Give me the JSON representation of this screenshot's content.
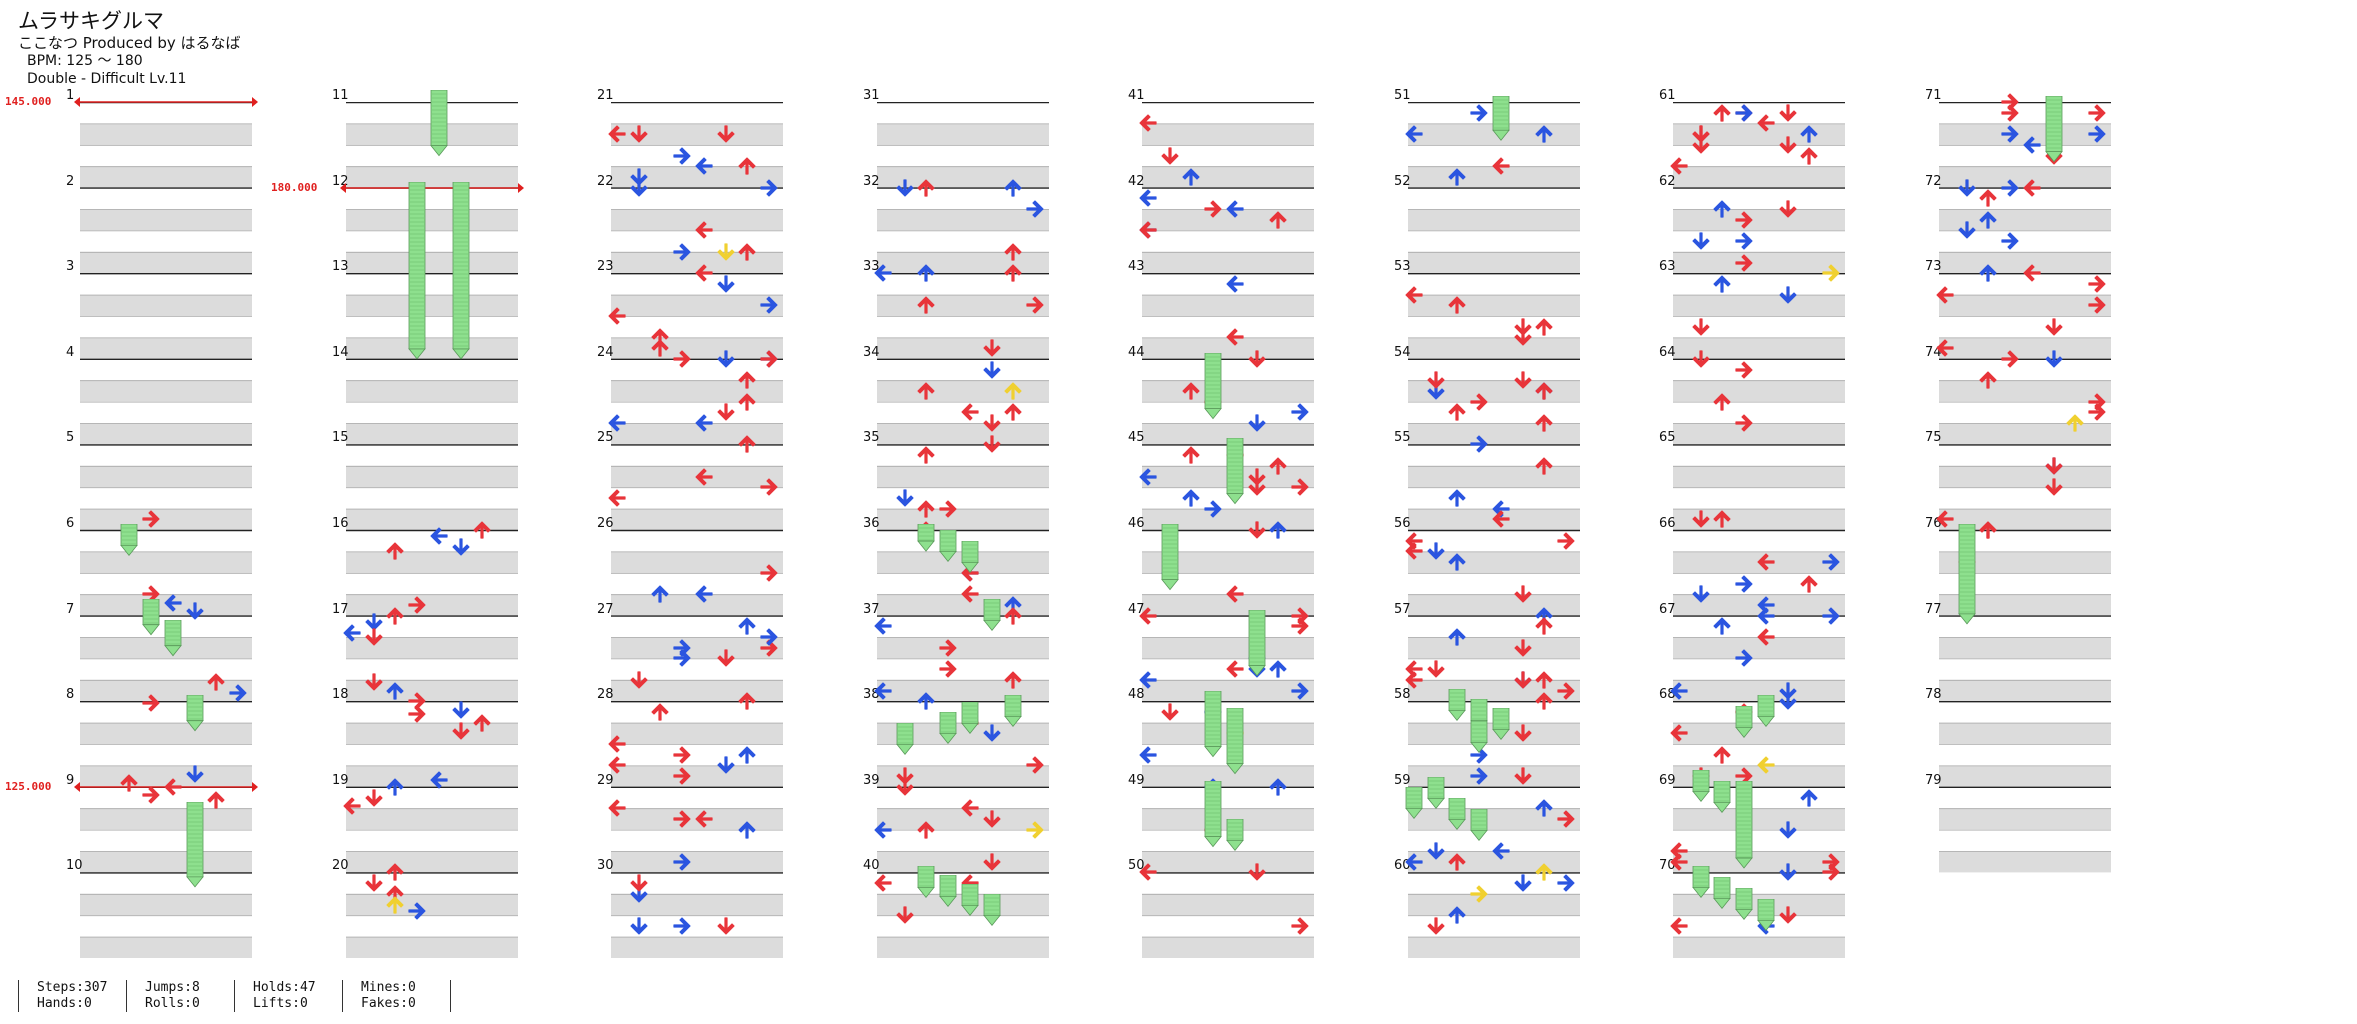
{
  "header": {
    "title": "ムラサキグルマ",
    "credit": "ここなつ Produced by はるなば",
    "bpm": "BPM: 125 ～ 180",
    "difficulty": "Double - Difficult Lv.11"
  },
  "measure_labels": [
    "1",
    "2",
    "3",
    "4",
    "5",
    "6",
    "7",
    "8",
    "9",
    "10",
    "11",
    "12",
    "13",
    "14",
    "15",
    "16",
    "17",
    "18",
    "19",
    "20",
    "21",
    "22",
    "23",
    "24",
    "25",
    "26",
    "27",
    "28",
    "29",
    "30",
    "31",
    "32",
    "33",
    "34",
    "35",
    "36",
    "37",
    "38",
    "39",
    "40",
    "41",
    "42",
    "43",
    "44",
    "45",
    "46",
    "47",
    "48",
    "49",
    "50",
    "51",
    "52",
    "53",
    "54",
    "55",
    "56",
    "57",
    "58",
    "59",
    "60",
    "61",
    "62",
    "63",
    "64",
    "65",
    "66",
    "67",
    "68",
    "69",
    "70",
    "71",
    "72",
    "73",
    "74",
    "75",
    "76",
    "77",
    "78",
    "79"
  ],
  "columns": [
    {
      "measures": [
        "1",
        "2",
        "3",
        "4",
        "5",
        "6",
        "7",
        "8",
        "9",
        "10"
      ]
    },
    {
      "measures": [
        "11",
        "12",
        "13",
        "14",
        "15",
        "16",
        "17",
        "18",
        "19",
        "20"
      ]
    },
    {
      "measures": [
        "21",
        "22",
        "23",
        "24",
        "25",
        "26",
        "27",
        "28",
        "29",
        "30"
      ]
    },
    {
      "measures": [
        "31",
        "32",
        "33",
        "34",
        "35",
        "36",
        "37",
        "38",
        "39",
        "40"
      ]
    },
    {
      "measures": [
        "41",
        "42",
        "43",
        "44",
        "45",
        "46",
        "47",
        "48",
        "49",
        "50"
      ]
    },
    {
      "measures": [
        "51",
        "52",
        "53",
        "54",
        "55",
        "56",
        "57",
        "58",
        "59",
        "60"
      ]
    },
    {
      "measures": [
        "61",
        "62",
        "63",
        "64",
        "65",
        "66",
        "67",
        "68",
        "69",
        "70"
      ]
    },
    {
      "measures": [
        "71",
        "72",
        "73",
        "74",
        "75",
        "76",
        "77",
        "78",
        "79"
      ]
    }
  ],
  "bpm_changes": [
    {
      "label": "145.000",
      "measure": 1,
      "beat": 0
    },
    {
      "label": "180.000",
      "measure": 12,
      "beat": 0
    },
    {
      "label": "125.000",
      "measure": 9,
      "beat": 0
    }
  ],
  "colors": {
    "quarter_arrow": "#e8343a",
    "eighth_arrow": "#2b55e0",
    "sixteenth_arrow": "#f0d030",
    "hold_body": "#8ee08e",
    "measure_band": "#dcdcdc",
    "bpm_line": "#e0201f"
  },
  "icons": [
    "arrow-left-icon",
    "arrow-down-icon",
    "arrow-up-icon",
    "arrow-right-icon",
    "hold-note-icon"
  ],
  "stats": {
    "steps": "Steps:307",
    "hands": "Hands:0",
    "jumps": "Jumps:8",
    "rolls": "Rolls:0",
    "holds": "Holds:47",
    "lifts": "Lifts:0",
    "mines": "Mines:0",
    "fakes": "Fakes:0"
  }
}
